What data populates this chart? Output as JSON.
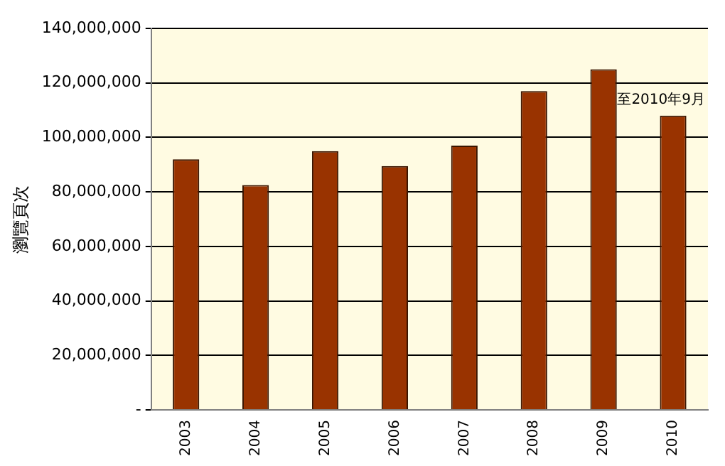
{
  "chart_data": {
    "type": "bar",
    "ylabel": "瀏覽頁次",
    "categories": [
      "2003",
      "2004",
      "2005",
      "2006",
      "2007",
      "2008",
      "2009",
      "2010"
    ],
    "values": [
      92000000,
      82500000,
      95000000,
      89500000,
      97000000,
      117000000,
      125000000,
      108000000
    ],
    "color": "#993300",
    "ylim": [
      0,
      140000000
    ],
    "yticks": [
      {
        "value": 0,
        "label": "-"
      },
      {
        "value": 20000000,
        "label": "20,000,000"
      },
      {
        "value": 40000000,
        "label": "40,000,000"
      },
      {
        "value": 60000000,
        "label": "60,000,000"
      },
      {
        "value": 80000000,
        "label": "80,000,000"
      },
      {
        "value": 100000000,
        "label": "100,000,000"
      },
      {
        "value": 120000000,
        "label": "120,000,000"
      },
      {
        "value": 140000000,
        "label": "140,000,000"
      }
    ],
    "grid": "y",
    "annotations": [
      {
        "text": "至2010年9月",
        "x": "2010",
        "y": 108000000
      }
    ]
  }
}
